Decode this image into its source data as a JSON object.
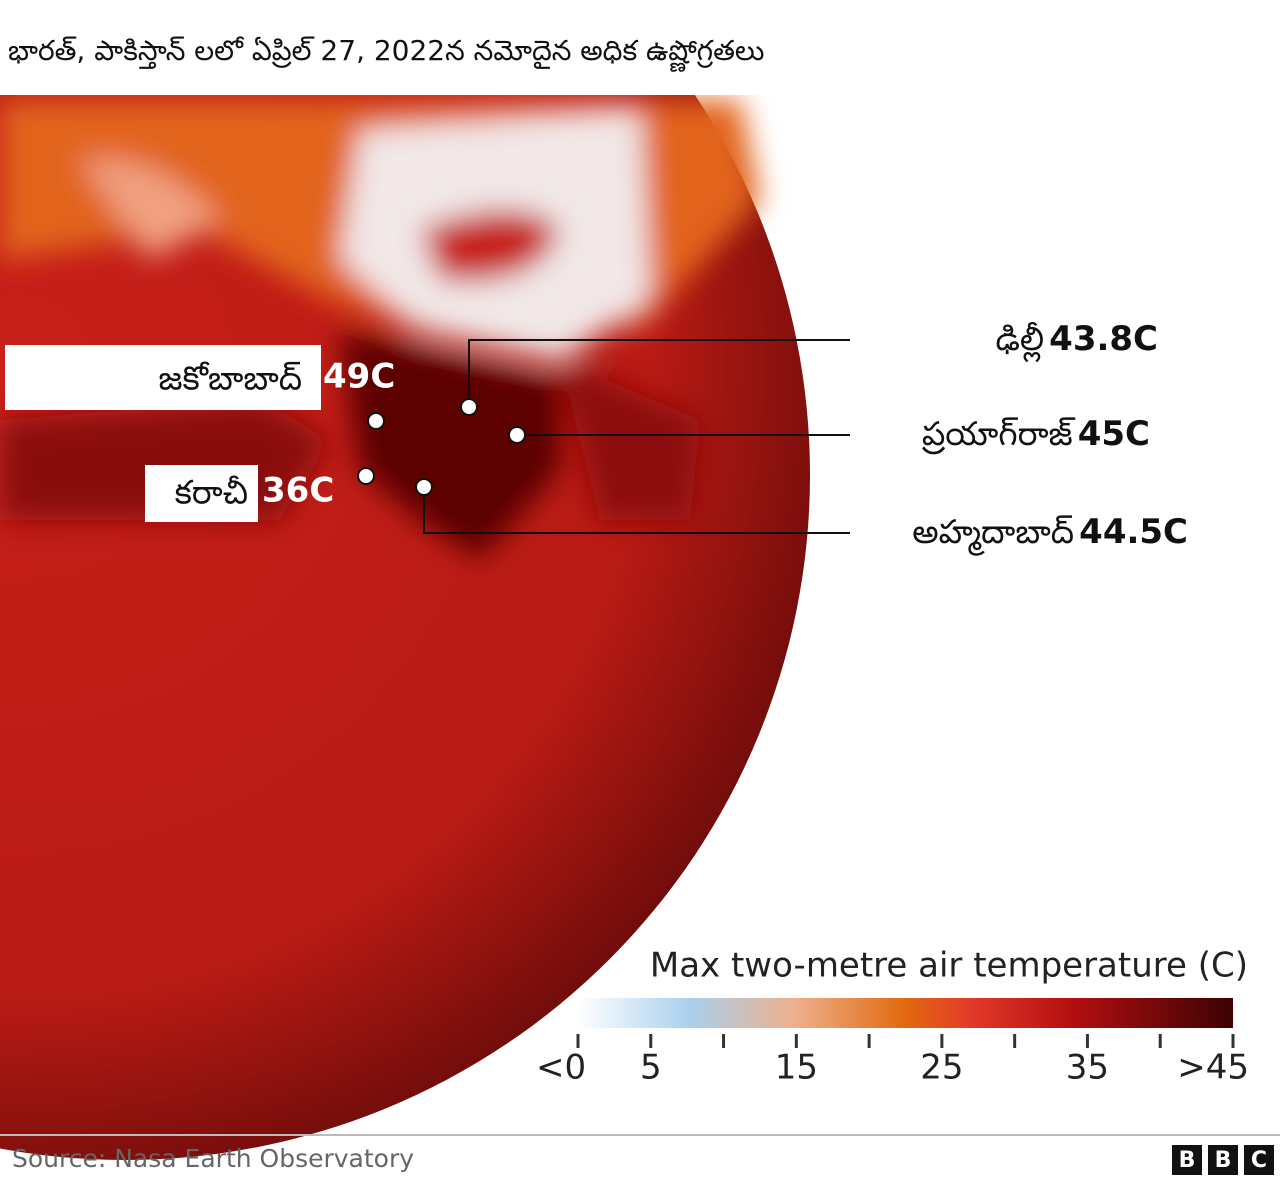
{
  "header": {
    "title": "భారత్, పాకిస్తాన్ లలో ఏప్రిల్ 27, 2022న నమోదైన అధిక ఉష్ణోగ్రతలు"
  },
  "cities": [
    {
      "name": "జకోబాబాద్",
      "temp": "49C"
    },
    {
      "name": "కరాచీ",
      "temp": "36C"
    },
    {
      "name": "ఢిల్లీ",
      "temp": "43.8C"
    },
    {
      "name": "ప్రయాగ్‌రాజ్",
      "temp": "45C"
    },
    {
      "name": "అహ్మదాబాద్",
      "temp": "44.5C"
    }
  ],
  "legend": {
    "title": "Max two-metre air temperature (C)",
    "range": [
      0,
      45
    ],
    "ticks": [
      {
        "value": 0,
        "label": "<0"
      },
      5,
      15,
      25,
      35,
      {
        "value": 45,
        "label": ">45"
      }
    ],
    "minor_ticks": [
      10,
      20,
      30,
      40
    ]
  },
  "footer": {
    "source": "Source: Nasa Earth Observatory",
    "logo": [
      "B",
      "B",
      "C"
    ]
  }
}
